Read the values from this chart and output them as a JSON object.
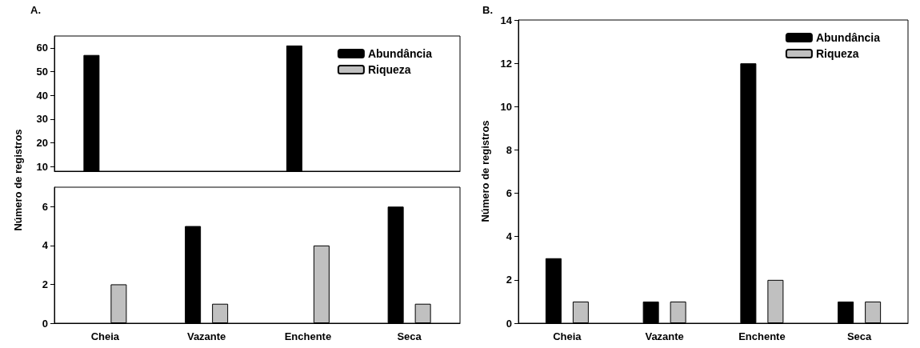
{
  "chart_data": [
    {
      "type": "bar",
      "title": "A.",
      "categories": [
        null,
        null,
        null,
        null
      ],
      "series": [
        {
          "name": "Abundância",
          "color": "#000000",
          "values": [
            57,
            null,
            61,
            null
          ]
        },
        {
          "name": "Riqueza",
          "color": "#c0c0c0",
          "values": [
            null,
            null,
            null,
            null
          ]
        }
      ],
      "ylim": [
        8,
        65
      ],
      "yticks": [
        10,
        20,
        30,
        40,
        50,
        60
      ],
      "legend": "top right",
      "tick_labels": "y"
    },
    {
      "type": "bar",
      "ylabel": "Número de registros",
      "categories": [
        "Cheia",
        "Vazante",
        "Enchente",
        "Seca"
      ],
      "series": [
        {
          "color": "#000000",
          "values": [
            null,
            5,
            null,
            6
          ]
        },
        {
          "color": "#c0c0c0",
          "values": [
            2,
            1,
            4,
            1
          ]
        }
      ],
      "ylim": [
        0,
        7
      ],
      "yticks": [
        0,
        2,
        4,
        6
      ]
    },
    {
      "type": "bar",
      "title": "B.",
      "ylabel": "Número de registros",
      "categories": [
        "Cheia",
        "Vazante",
        "Enchente",
        "Seca"
      ],
      "series": [
        {
          "name": "Abundância",
          "color": "#000000",
          "values": [
            3,
            1,
            12,
            1
          ]
        },
        {
          "name": "Riqueza",
          "color": "#c0c0c0",
          "values": [
            1,
            1,
            2,
            1
          ]
        }
      ],
      "ylim": [
        0,
        14
      ],
      "yticks": [
        0,
        2,
        4,
        6,
        8,
        10,
        12,
        14
      ],
      "legend": "top right"
    }
  ]
}
